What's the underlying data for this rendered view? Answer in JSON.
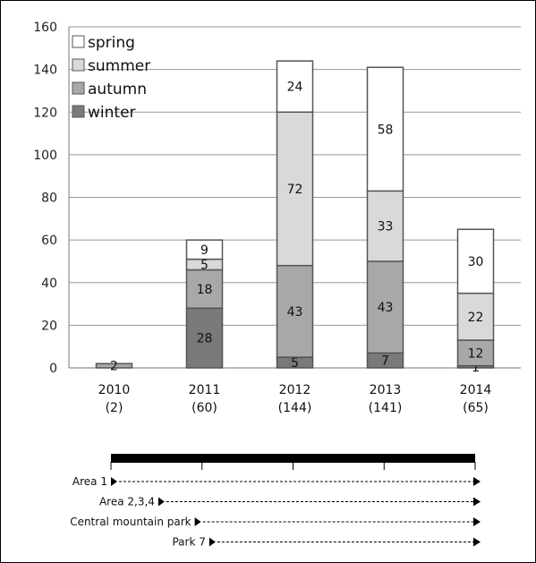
{
  "chart_data": {
    "type": "bar",
    "stacked": true,
    "categories": [
      "2010",
      "2011",
      "2012",
      "2013",
      "2014"
    ],
    "category_totals": [
      "(2)",
      "(60)",
      "(144)",
      "(141)",
      "(65)"
    ],
    "series": [
      {
        "name": "winter",
        "values": [
          0,
          28,
          5,
          7,
          1
        ],
        "color": "#7a7a7a"
      },
      {
        "name": "autumn",
        "values": [
          2,
          18,
          43,
          43,
          12
        ],
        "color": "#a8a8a8"
      },
      {
        "name": "summer",
        "values": [
          0,
          5,
          72,
          33,
          22
        ],
        "color": "#d9d9d9"
      },
      {
        "name": "spring",
        "values": [
          0,
          9,
          24,
          58,
          30
        ],
        "color": "#ffffff"
      }
    ],
    "legend_order": [
      "spring",
      "summer",
      "autumn",
      "winter"
    ],
    "legend_position": "top-left",
    "ylim": [
      0,
      160
    ],
    "yticks": [
      0,
      20,
      40,
      60,
      80,
      100,
      120,
      140,
      160
    ],
    "grid": true
  },
  "timeline": {
    "items": [
      {
        "label": "Area 1",
        "start": 0
      },
      {
        "label": "Area 2,3,4",
        "start": 0.13
      },
      {
        "label": "Central mountain park",
        "start": 0.23
      },
      {
        "label": "Park 7",
        "start": 0.27
      }
    ]
  }
}
